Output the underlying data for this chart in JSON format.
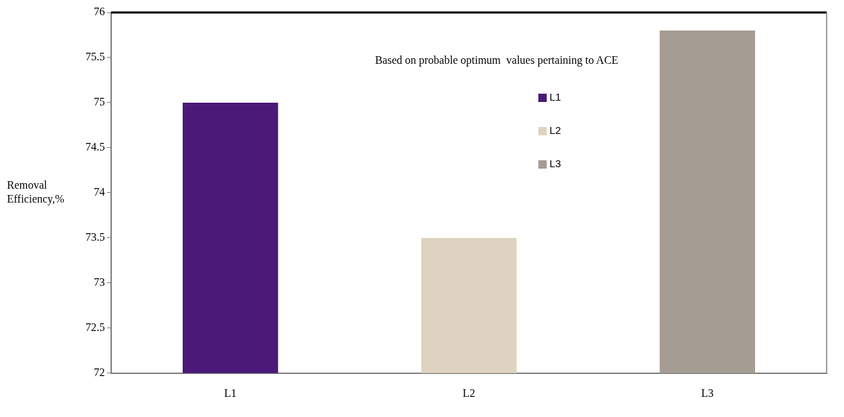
{
  "chart_data": {
    "type": "bar",
    "title": "Based on probable optimum  values pertaining to ACE",
    "ylabel": "Removal Efficiency,%",
    "categories": [
      "L1",
      "L2",
      "L3"
    ],
    "series": [
      {
        "name": "L1",
        "color": "#4b1a78",
        "values": [
          75,
          null,
          null
        ]
      },
      {
        "name": "L2",
        "color": "#ddd3c0",
        "values": [
          null,
          73.5,
          null
        ]
      },
      {
        "name": "L3",
        "color": "#a59c94",
        "values": [
          null,
          null,
          75.8
        ]
      }
    ],
    "ylim": [
      72,
      76
    ],
    "yticks": [
      72,
      72.5,
      73,
      73.5,
      74,
      74.5,
      75,
      75.5,
      76
    ],
    "grid": false,
    "legend": "top"
  }
}
